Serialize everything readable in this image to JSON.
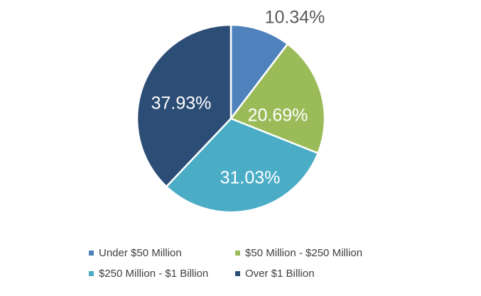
{
  "chart_data": {
    "type": "pie",
    "title": "",
    "categories": [
      "Under $50 Million",
      "$50 Million - $250 Million",
      "$250 Million - $1 Billion",
      "Over $1 Billion"
    ],
    "values": [
      10.34,
      20.69,
      31.03,
      37.93
    ],
    "labels": [
      "10.34%",
      "20.69%",
      "31.03%",
      "37.93%"
    ],
    "colors": [
      "#4f81bd",
      "#9bbb59",
      "#4bacc6",
      "#2c4d75"
    ],
    "label_colors": [
      "#595959",
      "#ffffff",
      "#ffffff",
      "#ffffff"
    ],
    "start_angle": "12 o'clock, clockwise",
    "legend_position": "bottom"
  }
}
